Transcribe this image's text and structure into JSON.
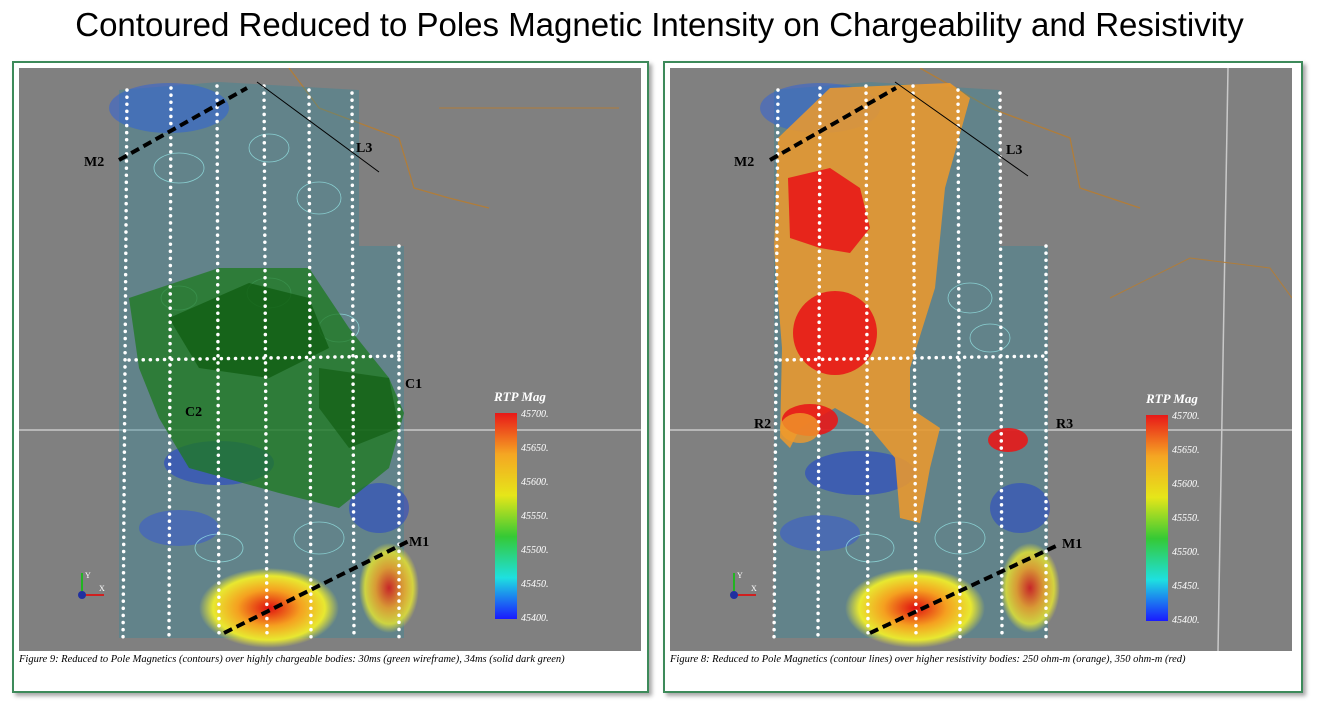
{
  "title": "Contoured Reduced to Poles Magnetic Intensity on Chargeability and Resistivity",
  "colors": {
    "background": "#808080",
    "panel_border": "#3d8a5a",
    "chargeable_green": "#1f7a1f",
    "resistive_orange": "#f09a2a",
    "resistive_red": "#e81818"
  },
  "panels": [
    {
      "id": "figure-9",
      "labels": {
        "m2": "M2",
        "l3": "L3",
        "c1": "C1",
        "c2": "C2",
        "m1": "M1"
      },
      "legend": {
        "title": "RTP Mag",
        "ticks": [
          "45700.",
          "45650.",
          "45600.",
          "45550.",
          "45500.",
          "45450.",
          "45400."
        ]
      },
      "axis_icon": {
        "y": "Y",
        "x": "X"
      },
      "caption": "Figure 9: Reduced to Pole Magnetics (contours) over highly chargeable bodies: 30ms (green wireframe), 34ms (solid dark green)"
    },
    {
      "id": "figure-8",
      "labels": {
        "m2": "M2",
        "l3": "L3",
        "r2": "R2",
        "r3": "R3",
        "m1": "M1"
      },
      "legend": {
        "title": "RTP Mag",
        "ticks": [
          "45700.",
          "45650.",
          "45600.",
          "45550.",
          "45500.",
          "45450.",
          "45400."
        ]
      },
      "axis_icon": {
        "y": "Y",
        "x": "X"
      },
      "caption": "Figure 8: Reduced to Pole Magnetics (contour lines) over higher resistivity bodies: 250 ohm-m (orange), 350 ohm-m (red)"
    }
  ]
}
